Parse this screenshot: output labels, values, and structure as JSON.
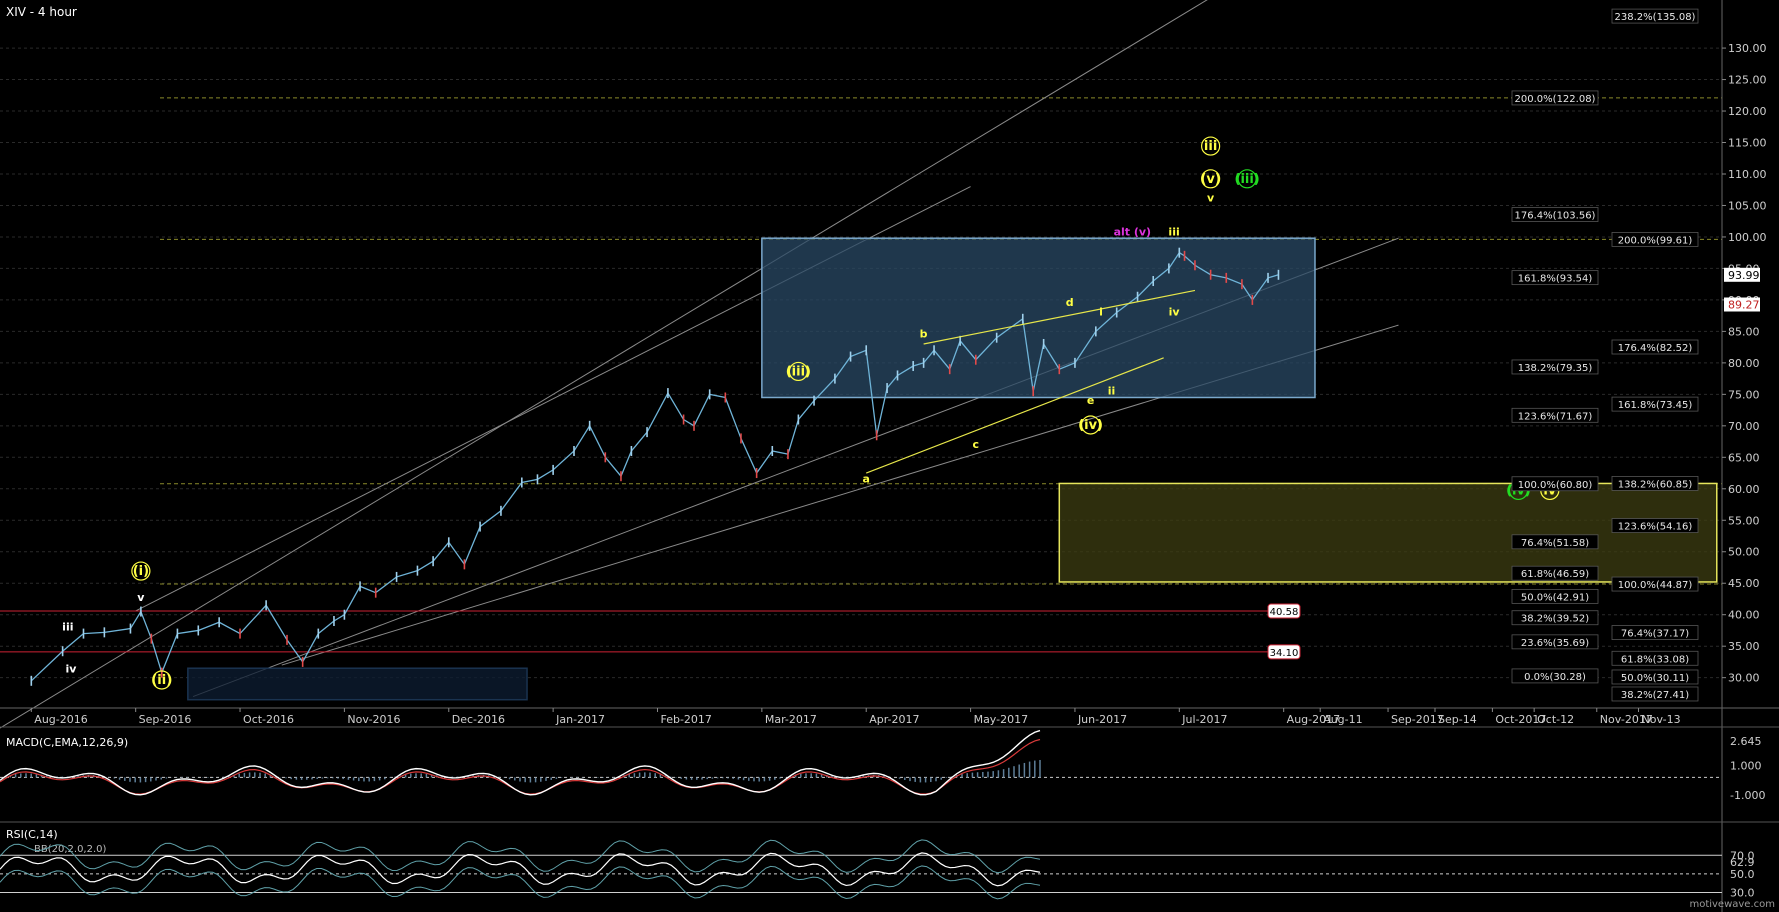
{
  "chart_data": {
    "type": "line",
    "title": "XIV - 4 hour",
    "price_axis": {
      "ticks": [
        30,
        35,
        40,
        45,
        50,
        55,
        60,
        65,
        70,
        75,
        80,
        85,
        90,
        95,
        100,
        105,
        110,
        115,
        120,
        125,
        130
      ],
      "tick_labels": [
        "30.00",
        "35.00",
        "40.00",
        "45.00",
        "50.00",
        "55.00",
        "60.00",
        "65.00",
        "70.00",
        "75.00",
        "80.00",
        "85.00",
        "90.00",
        "95.00",
        "100.00",
        "105.00",
        "110.00",
        "115.00",
        "120.00",
        "125.00",
        "130.00"
      ],
      "range": [
        25.5,
        137
      ],
      "last_price": "93.99",
      "marker_price": "89.27"
    },
    "time_axis": {
      "labels": [
        "Aug-2016",
        "Sep-2016",
        "Oct-2016",
        "Nov-2016",
        "Dec-2016",
        "Jan-2017",
        "Feb-2017",
        "Mar-2017",
        "Apr-2017",
        "May-2017",
        "Jun-2017",
        "Jul-2017",
        "Aug-2017",
        "Aug-11",
        "Sep-2017",
        "Sep-14",
        "Oct-2017",
        "Oct-12",
        "Nov-2017",
        "Nov-13"
      ],
      "values": [
        0,
        1,
        2,
        3,
        4,
        5,
        6,
        7,
        8,
        9,
        10,
        11,
        12,
        12.35,
        13,
        13.45,
        14,
        14.4,
        15,
        15.4
      ],
      "range": [
        -0.3,
        16.2
      ]
    },
    "series": [
      {
        "x": [
          0,
          0.3,
          0.5,
          0.7,
          0.95,
          1.05,
          1.15,
          1.25,
          1.4,
          1.6,
          1.8,
          2.0,
          2.25,
          2.45,
          2.6,
          2.75,
          2.9,
          3.0,
          3.15,
          3.3,
          3.5,
          3.7,
          3.85,
          4.0,
          4.15,
          4.3,
          4.5,
          4.7,
          4.85,
          5.0,
          5.2,
          5.35,
          5.5,
          5.65,
          5.75,
          5.9,
          6.1,
          6.25,
          6.35,
          6.5,
          6.65,
          6.8,
          6.95,
          7.1,
          7.25,
          7.35,
          7.5,
          7.7,
          7.85,
          8.0,
          8.1,
          8.2,
          8.3,
          8.45,
          8.55,
          8.65,
          8.8,
          8.9,
          9.05,
          9.25,
          9.5,
          9.6,
          9.7,
          9.85,
          10.0,
          10.2,
          10.4,
          10.6,
          10.75,
          10.9,
          11.0,
          11.05,
          11.15,
          11.3,
          11.45,
          11.6,
          11.7,
          11.85,
          11.95
        ],
        "values": [
          29.5,
          34.2,
          37.0,
          37.2,
          37.8,
          40.5,
          36.2,
          30.8,
          37.0,
          37.5,
          38.8,
          37.0,
          41.5,
          36.0,
          32.5,
          37.0,
          39.0,
          40.0,
          44.5,
          43.5,
          46.0,
          47.0,
          48.5,
          51.5,
          48.0,
          54.0,
          56.5,
          61.0,
          61.5,
          63.0,
          66.0,
          70.0,
          65.0,
          62.0,
          66.0,
          69.0,
          75.2,
          71.0,
          70.0,
          75.0,
          74.5,
          68.0,
          62.5,
          66.0,
          65.5,
          71.0,
          74.0,
          77.5,
          81.0,
          82.0,
          68.5,
          76.0,
          78.0,
          79.5,
          80.0,
          82.0,
          79.0,
          83.5,
          80.5,
          84.0,
          87.0,
          75.5,
          83.0,
          79.0,
          80.0,
          85.0,
          88.0,
          90.5,
          93.0,
          95.0,
          97.5,
          97.0,
          95.5,
          94.0,
          93.5,
          92.5,
          90.0,
          93.5,
          93.99
        ]
      }
    ],
    "wave_labels": [
      {
        "text": "(i)",
        "x": 1.05,
        "y": 46.3,
        "color": "#ffff44",
        "circled": true
      },
      {
        "text": "v",
        "x": 1.05,
        "y": 42.2,
        "color": "#ffffff",
        "circled": false
      },
      {
        "text": "iii",
        "x": 0.35,
        "y": 37.5,
        "color": "#ffffff",
        "circled": false
      },
      {
        "text": "iv",
        "x": 0.38,
        "y": 30.8,
        "color": "#ffffff",
        "circled": false
      },
      {
        "text": "(ii)",
        "x": 1.25,
        "y": 29.0,
        "color": "#ffff44",
        "circled": true
      },
      {
        "text": "(iii)",
        "x": 7.35,
        "y": 78.0,
        "color": "#ffff44",
        "circled": true
      },
      {
        "text": "a",
        "x": 8.0,
        "y": 61.0,
        "color": "#ffff44",
        "circled": false
      },
      {
        "text": "b",
        "x": 8.55,
        "y": 84.0,
        "color": "#ffff44",
        "circled": false
      },
      {
        "text": "c",
        "x": 9.05,
        "y": 66.5,
        "color": "#ffff44",
        "circled": false
      },
      {
        "text": "d",
        "x": 9.95,
        "y": 89.0,
        "color": "#ffff44",
        "circled": false
      },
      {
        "text": "e",
        "x": 10.15,
        "y": 73.5,
        "color": "#ffff44",
        "circled": false
      },
      {
        "text": "(iv)",
        "x": 10.15,
        "y": 69.5,
        "color": "#ffff44",
        "circled": true
      },
      {
        "text": "i",
        "x": 10.25,
        "y": 87.5,
        "color": "#ffff44",
        "circled": false
      },
      {
        "text": "ii",
        "x": 10.35,
        "y": 75.0,
        "color": "#ffff44",
        "circled": false
      },
      {
        "text": "iii",
        "x": 10.95,
        "y": 100.2,
        "color": "#ffff44",
        "circled": false
      },
      {
        "text": "iv",
        "x": 10.95,
        "y": 87.5,
        "color": "#ffff44",
        "circled": false
      },
      {
        "text": "alt (v)",
        "x": 10.55,
        "y": 100.2,
        "color": "#dd33dd",
        "circled": false
      },
      {
        "text": "iii",
        "x": 11.3,
        "y": 113.8,
        "color": "#ffff44",
        "circled": true
      },
      {
        "text": "(v)",
        "x": 11.3,
        "y": 108.6,
        "color": "#ffff44",
        "circled": true
      },
      {
        "text": "(iii)",
        "x": 11.65,
        "y": 108.6,
        "color": "#22dd22",
        "circled": true
      },
      {
        "text": "v",
        "x": 11.3,
        "y": 105.6,
        "color": "#ffff44",
        "circled": false
      },
      {
        "text": "(iv)",
        "x": 14.25,
        "y": 59.1,
        "color": "#22dd22",
        "circled": true
      },
      {
        "text": "iv",
        "x": 14.55,
        "y": 59.1,
        "color": "#ffff44",
        "circled": true
      }
    ],
    "fib_levels": [
      {
        "label": "238.2%(135.08)",
        "y": 135.08,
        "col": 2
      },
      {
        "label": "200.0%(122.08)",
        "y": 122.08,
        "col": 1
      },
      {
        "label": "176.4%(103.56)",
        "y": 103.56,
        "col": 1
      },
      {
        "label": "200.0%(99.61)",
        "y": 99.61,
        "col": 2
      },
      {
        "label": "161.8%(93.54)",
        "y": 93.54,
        "col": 1
      },
      {
        "label": "176.4%(82.52)",
        "y": 82.52,
        "col": 2
      },
      {
        "label": "138.2%(79.35)",
        "y": 79.35,
        "col": 1
      },
      {
        "label": "161.8%(73.45)",
        "y": 73.45,
        "col": 2
      },
      {
        "label": "123.6%(71.67)",
        "y": 71.67,
        "col": 1
      },
      {
        "label": "100.0%(60.80)",
        "y": 60.8,
        "col": 1
      },
      {
        "label": "138.2%(60.85)",
        "y": 60.85,
        "col": 2
      },
      {
        "label": "123.6%(54.16)",
        "y": 54.16,
        "col": 2
      },
      {
        "label": "76.4%(51.58)",
        "y": 51.58,
        "col": 1
      },
      {
        "label": "61.8%(46.59)",
        "y": 46.59,
        "col": 1
      },
      {
        "label": "100.0%(44.87)",
        "y": 44.87,
        "col": 2
      },
      {
        "label": "50.0%(42.91)",
        "y": 42.91,
        "col": 1
      },
      {
        "label": "38.2%(39.52)",
        "y": 39.52,
        "col": 1
      },
      {
        "label": "76.4%(37.17)",
        "y": 37.17,
        "col": 2
      },
      {
        "label": "23.6%(35.69)",
        "y": 35.69,
        "col": 1
      },
      {
        "label": "61.8%(33.08)",
        "y": 33.08,
        "col": 2
      },
      {
        "label": "0.0%(30.28)",
        "y": 30.28,
        "col": 1
      },
      {
        "label": "50.0%(30.11)",
        "y": 30.11,
        "col": 2
      },
      {
        "label": "38.2%(27.41)",
        "y": 27.41,
        "col": 2
      }
    ],
    "horizontal_lines": [
      {
        "label": "40.58",
        "y": 40.58,
        "color": "#cc2233"
      },
      {
        "label": "34.10",
        "y": 34.1,
        "color": "#cc2233"
      }
    ],
    "dashed_levels": [
      122.08,
      99.61,
      60.8,
      44.87
    ],
    "target_boxes": [
      {
        "x0": 7.0,
        "x1": 12.3,
        "y0": 74.5,
        "y1": 99.8,
        "fill": "#2a4a66",
        "stroke": "#7aa8cc"
      },
      {
        "x0": 9.85,
        "x1": 16.15,
        "y0": 45.2,
        "y1": 60.85,
        "fill": "#3d3d12",
        "stroke": "#e6e65c"
      },
      {
        "x0": 1.5,
        "x1": 4.75,
        "y0": 26.5,
        "y1": 31.5,
        "fill": "#0d1e33",
        "stroke": "#1a3350"
      }
    ],
    "trend_lines": [
      {
        "x0": 8.0,
        "y0": 62.5,
        "x1": 10.85,
        "y1": 80.8,
        "color": "#e6e64a"
      },
      {
        "x0": 8.55,
        "y0": 83.0,
        "x1": 11.15,
        "y1": 91.5,
        "color": "#e6e64a"
      }
    ],
    "channels": [
      {
        "x0": -0.3,
        "y0": 22.0,
        "x1": 12.1,
        "y1": 146.0
      },
      {
        "x0": 1.0,
        "y0": 40.6,
        "x1": 9.0,
        "y1": 108.0
      },
      {
        "x0": 1.55,
        "y0": 27.0,
        "x1": 13.1,
        "y1": 99.8
      },
      {
        "x0": 2.4,
        "y0": 32.0,
        "x1": 13.1,
        "y1": 86.0
      }
    ],
    "macd": {
      "title": "MACD(C,EMA,12,26,9)",
      "ticks": [
        2.645,
        1.0,
        -1.0
      ],
      "tick_labels": [
        "2.645",
        "1.000",
        "-1.000"
      ],
      "range": [
        -2.0,
        3.4
      ],
      "zero": 0.2
    },
    "rsi": {
      "title": "RSI(C,14)",
      "subtitle": "BB(20,2.0,2.0)",
      "ticks": [
        70.0,
        62.9,
        50.0,
        30.0
      ],
      "tick_labels": [
        "70.0",
        "62.9",
        "50.0",
        "30.0"
      ],
      "range": [
        22,
        95
      ]
    }
  },
  "watermark": "motivewave.com"
}
